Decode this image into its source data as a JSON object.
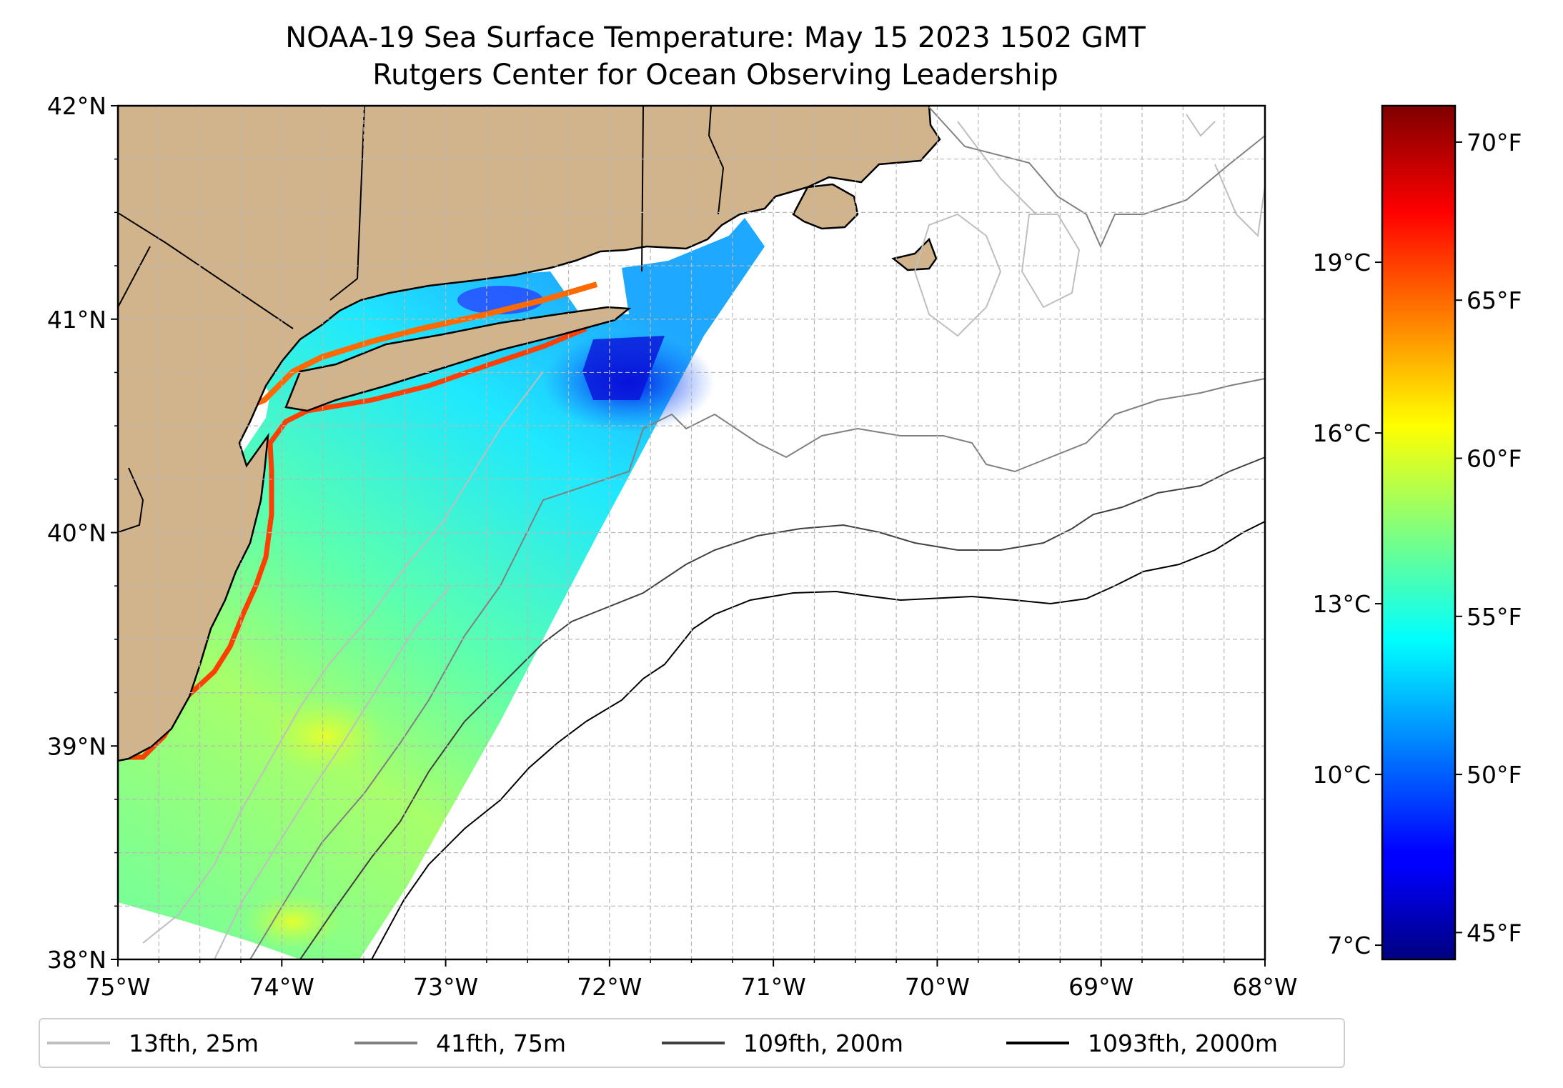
{
  "title": {
    "line1": "NOAA-19 Sea Surface Temperature: May 15 2023 1502 GMT",
    "line2": "Rutgers Center for Ocean Observing Leadership"
  },
  "map": {
    "lon_range": [
      -75,
      -68
    ],
    "lat_range": [
      38,
      42
    ],
    "lon_ticks": [
      {
        "value": -75,
        "label": "75°W"
      },
      {
        "value": -74,
        "label": "74°W"
      },
      {
        "value": -73,
        "label": "73°W"
      },
      {
        "value": -72,
        "label": "72°W"
      },
      {
        "value": -71,
        "label": "71°W"
      },
      {
        "value": -70,
        "label": "70°W"
      },
      {
        "value": -69,
        "label": "69°W"
      },
      {
        "value": -68,
        "label": "68°W"
      }
    ],
    "lat_ticks": [
      {
        "value": 42,
        "label": "42°N"
      },
      {
        "value": 41,
        "label": "41°N"
      },
      {
        "value": 40,
        "label": "40°N"
      },
      {
        "value": 39,
        "label": "39°N"
      },
      {
        "value": 38,
        "label": "38°N"
      }
    ],
    "grid": "dashed gray every 0.25°",
    "land_color": "#d2b48c",
    "coastline_color": "#000000"
  },
  "colorbar": {
    "colormap": "jet",
    "celsius_range": [
      6.75,
      21.75
    ],
    "celsius_ticks": [
      {
        "value": 7,
        "label": "7°C"
      },
      {
        "value": 10,
        "label": "10°C"
      },
      {
        "value": 13,
        "label": "13°C"
      },
      {
        "value": 16,
        "label": "16°C"
      },
      {
        "value": 19,
        "label": "19°C"
      }
    ],
    "fahrenheit_ticks": [
      {
        "value": 45,
        "label": "45°F"
      },
      {
        "value": 50,
        "label": "50°F"
      },
      {
        "value": 55,
        "label": "55°F"
      },
      {
        "value": 60,
        "label": "60°F"
      },
      {
        "value": 65,
        "label": "65°F"
      },
      {
        "value": 70,
        "label": "70°F"
      }
    ]
  },
  "legend": {
    "placement": "bottom",
    "items": [
      {
        "label": "13fth, 25m",
        "color": "#bebebe"
      },
      {
        "label": "41fth, 75m",
        "color": "#808080"
      },
      {
        "label": "109fth, 200m",
        "color": "#404040"
      },
      {
        "label": "1093fth, 2000m",
        "color": "#000000"
      }
    ]
  }
}
